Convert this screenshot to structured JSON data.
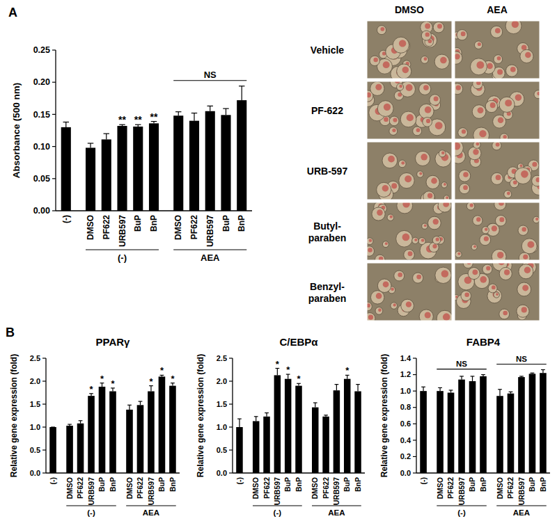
{
  "panels": [
    "A",
    "B"
  ],
  "micrographs": {
    "columns": [
      "DMSO",
      "AEA"
    ],
    "rows": [
      "Vehicle",
      "PF-622",
      "URB-597",
      "Butyl-\nparaben",
      "Benzyl-\nparaben"
    ]
  },
  "chart_data": [
    {
      "type": "bar",
      "ylabel": "Absorbance (500 nm)",
      "categories": [
        "(-)",
        "DMSO",
        "PF622",
        "URB597",
        "BuP",
        "BnP",
        "DMSO",
        "PF622",
        "URB597",
        "BuP",
        "BnP"
      ],
      "values": [
        0.13,
        0.098,
        0.111,
        0.132,
        0.131,
        0.136,
        0.148,
        0.14,
        0.155,
        0.149,
        0.172
      ],
      "errors": [
        0.008,
        0.007,
        0.009,
        0.002,
        0.003,
        0.003,
        0.006,
        0.012,
        0.008,
        0.01,
        0.022
      ],
      "annotations": [
        null,
        null,
        null,
        "**",
        "**",
        "**",
        null,
        null,
        null,
        null,
        null
      ],
      "color": "#000000",
      "ylim": [
        0,
        0.25
      ],
      "yticks": [
        {
          "value": 0,
          "label": "0.00"
        },
        0.05,
        {
          "value": 0.1,
          "label": "0.10"
        },
        0.15,
        {
          "value": 0.2,
          "label": "0.20"
        },
        0.25
      ],
      "groups": [
        {
          "label": "(-)",
          "from": 1,
          "to": 5
        },
        {
          "label": "AEA",
          "from": 6,
          "to": 10
        }
      ],
      "brackets": [
        {
          "label": "NS",
          "from": 6,
          "to": 10
        }
      ]
    },
    {
      "type": "bar",
      "title": "PPARγ",
      "ylabel": "Relative gene expression (fold)",
      "categories": [
        "(-)",
        "DMSO",
        "PF622",
        "URB597",
        "BuP",
        "BnP",
        "DMSO",
        "PF622",
        "URB597",
        "BuP",
        "BnP"
      ],
      "values": [
        1.0,
        1.03,
        1.08,
        1.68,
        1.88,
        1.78,
        1.38,
        1.48,
        1.78,
        2.1,
        1.9
      ],
      "errors": [
        0.0,
        0.03,
        0.06,
        0.05,
        0.08,
        0.07,
        0.1,
        0.08,
        0.12,
        0.03,
        0.06
      ],
      "annotations": [
        null,
        null,
        null,
        "*",
        "*",
        "*",
        null,
        null,
        "*",
        "*",
        "*"
      ],
      "color": "#000000",
      "ylim": [
        0,
        2.5
      ],
      "yticks": [
        {
          "value": 0,
          "label": "0.0"
        },
        0.5,
        {
          "value": 1,
          "label": "1.0"
        },
        1.5,
        {
          "value": 2,
          "label": "2.0"
        },
        2.5
      ],
      "groups": [
        {
          "label": "(-)",
          "from": 1,
          "to": 5
        },
        {
          "label": "AEA",
          "from": 6,
          "to": 10
        }
      ],
      "brackets": []
    },
    {
      "type": "bar",
      "title": "C/EBPα",
      "ylabel": "Relative gene expression (fold)",
      "categories": [
        "(-)",
        "DMSO",
        "PF622",
        "URB597",
        "BuP",
        "BnP",
        "DMSO",
        "PF622",
        "URB597",
        "BuP",
        "BnP"
      ],
      "values": [
        1.0,
        1.13,
        1.23,
        2.13,
        2.05,
        1.9,
        1.43,
        1.23,
        1.8,
        2.05,
        1.78
      ],
      "errors": [
        0.18,
        0.1,
        0.08,
        0.15,
        0.1,
        0.05,
        0.1,
        0.03,
        0.13,
        0.08,
        0.15
      ],
      "annotations": [
        null,
        null,
        null,
        "*",
        "*",
        "*",
        null,
        null,
        null,
        "*",
        null
      ],
      "color": "#000000",
      "ylim": [
        0,
        2.5
      ],
      "yticks": [
        {
          "value": 0,
          "label": "0.0"
        },
        0.5,
        {
          "value": 1,
          "label": "1.0"
        },
        1.5,
        {
          "value": 2,
          "label": "2.0"
        },
        2.5
      ],
      "groups": [
        {
          "label": "(-)",
          "from": 1,
          "to": 5
        },
        {
          "label": "AEA",
          "from": 6,
          "to": 10
        }
      ],
      "brackets": []
    },
    {
      "type": "bar",
      "title": "FABP4",
      "ylabel": "Relative gene expression (fold)",
      "categories": [
        "(-)",
        "DMSO",
        "PF622",
        "URB597",
        "BuP",
        "BnP",
        "DMSO",
        "PF622",
        "URB597",
        "BuP",
        "BnP"
      ],
      "values": [
        1.0,
        1.0,
        0.98,
        1.14,
        1.12,
        1.18,
        0.94,
        0.97,
        1.17,
        1.21,
        1.22
      ],
      "errors": [
        0.05,
        0.04,
        0.03,
        0.04,
        0.06,
        0.02,
        0.08,
        0.02,
        0.01,
        0.01,
        0.04
      ],
      "annotations": [
        null,
        null,
        null,
        null,
        null,
        null,
        null,
        null,
        null,
        null,
        null
      ],
      "color": "#000000",
      "ylim": [
        0,
        1.4
      ],
      "yticks": [
        {
          "value": 0,
          "label": "0.0"
        },
        0.2,
        0.4,
        0.6,
        0.8,
        {
          "value": 1,
          "label": "1.0"
        },
        1.2,
        1.4
      ],
      "groups": [
        {
          "label": "(-)",
          "from": 1,
          "to": 5
        },
        {
          "label": "AEA",
          "from": 6,
          "to": 10
        }
      ],
      "brackets": [
        {
          "label": "NS",
          "from": 1,
          "to": 5
        },
        {
          "label": "NS",
          "from": 6,
          "to": 10
        }
      ]
    }
  ]
}
